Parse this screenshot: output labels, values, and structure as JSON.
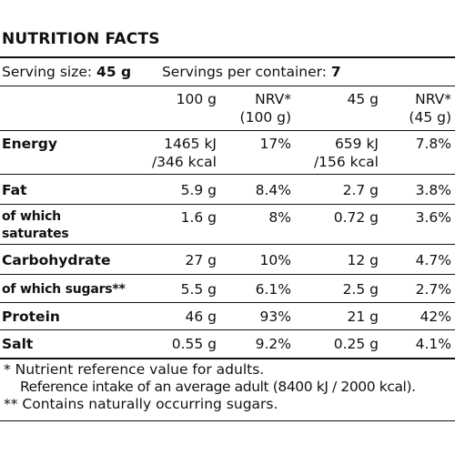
{
  "title": "NUTRITION FACTS",
  "serving": {
    "size_label": "Serving size:",
    "size_value": "45 g",
    "per_container_label": "Servings per container:",
    "per_container_value": "7"
  },
  "columns": {
    "per100_line1": "100 g",
    "nrv100_line1": "NRV*",
    "nrv100_line2": "(100 g)",
    "perServing_line1": "45 g",
    "nrvServing_line1": "NRV*",
    "nrvServing_line2": "(45 g)"
  },
  "rows": {
    "energy": {
      "name": "Energy",
      "per100_line1": "1465 kJ",
      "per100_line2": "/346 kcal",
      "nrv100": "17%",
      "perServing_line1": "659 kJ",
      "perServing_line2": "/156 kcal",
      "nrvServing": "7.8%"
    },
    "fat": {
      "name": "Fat",
      "per100": "5.9 g",
      "nrv100": "8.4%",
      "perServing": "2.7 g",
      "nrvServing": "3.8%"
    },
    "saturates": {
      "name_line1": "of which",
      "name_line2": "saturates",
      "per100": "1.6 g",
      "nrv100": "8%",
      "perServing": "0.72 g",
      "nrvServing": "3.6%"
    },
    "carbohydrate": {
      "name": "Carbohydrate",
      "per100": "27 g",
      "nrv100": "10%",
      "perServing": "12 g",
      "nrvServing": "4.7%"
    },
    "sugars": {
      "name": "of which sugars**",
      "per100": "5.5 g",
      "nrv100": "6.1%",
      "perServing": "2.5 g",
      "nrvServing": "2.7%"
    },
    "protein": {
      "name": "Protein",
      "per100": "46 g",
      "nrv100": "93%",
      "perServing": "21 g",
      "nrvServing": "42%"
    },
    "salt": {
      "name": "Salt",
      "per100": "0.55 g",
      "nrv100": "9.2%",
      "perServing": "0.25 g",
      "nrvServing": "4.1%"
    }
  },
  "footnotes": {
    "nrv_note": "* Nutrient reference value for adults.",
    "reference_intake": "Reference intake of an average adult (8400 kJ / 2000 kcal).",
    "sugars_note": "** Contains naturally occurring sugars."
  }
}
